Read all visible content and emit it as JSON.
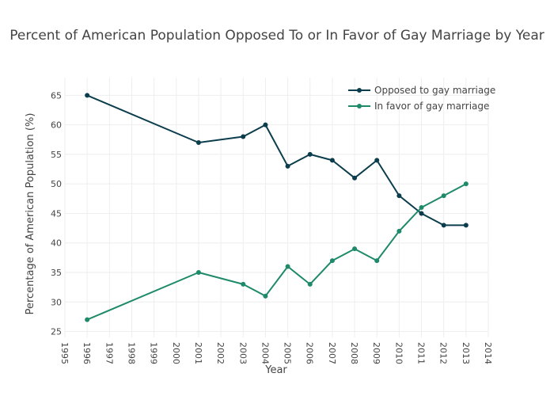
{
  "chart_data": {
    "type": "line",
    "title": "Percent of American Population Opposed To or In Favor of Gay Marriage by Year",
    "xlabel": "Year",
    "ylabel": "Percentage of American Population (%)",
    "xlim": [
      1995,
      2014
    ],
    "ylim": [
      24,
      68
    ],
    "x_ticks": [
      1995,
      1996,
      1997,
      1998,
      1999,
      2000,
      2001,
      2002,
      2003,
      2004,
      2005,
      2006,
      2007,
      2008,
      2009,
      2010,
      2011,
      2012,
      2013,
      2014
    ],
    "y_ticks": [
      25,
      30,
      35,
      40,
      45,
      50,
      55,
      60,
      65
    ],
    "grid": true,
    "legend_position": "top-right",
    "series": [
      {
        "name": "Opposed to gay marriage",
        "color": "#0b3d4d",
        "x": [
          1996,
          2001,
          2003,
          2004,
          2005,
          2006,
          2007,
          2008,
          2009,
          2010,
          2011,
          2012,
          2013
        ],
        "values": [
          65,
          57,
          58,
          60,
          53,
          55,
          54,
          51,
          54,
          48,
          45,
          43,
          43
        ]
      },
      {
        "name": "In favor of gay marriage",
        "color": "#1e8a6a",
        "x": [
          1996,
          2001,
          2003,
          2004,
          2005,
          2006,
          2007,
          2008,
          2009,
          2010,
          2011,
          2012,
          2013
        ],
        "values": [
          27,
          35,
          33,
          31,
          36,
          33,
          37,
          39,
          37,
          42,
          46,
          48,
          50
        ]
      }
    ]
  }
}
